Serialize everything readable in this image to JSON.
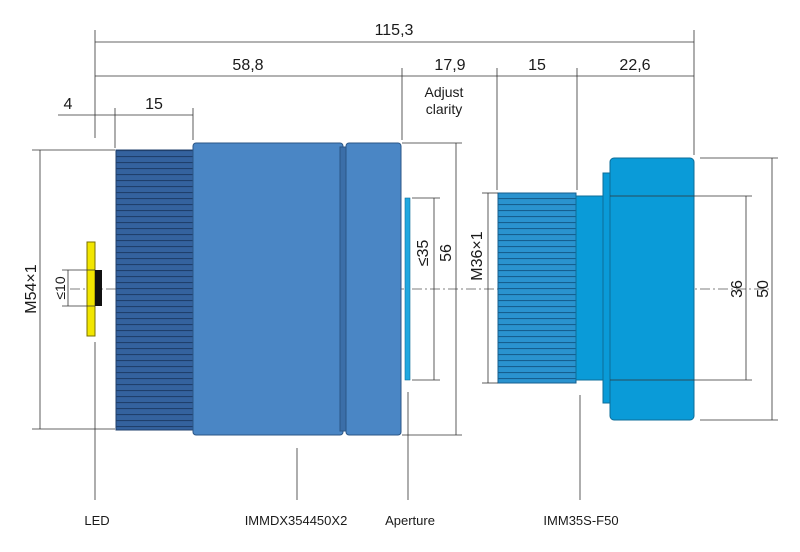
{
  "dimensions": {
    "overall_length": "115,3",
    "front_module_length": "58,8",
    "clarity_gap": "17,9",
    "thread_length_right": "15",
    "rear_body_length": "22,6",
    "led_offset": "4",
    "thread_length_left": "15",
    "left_thread": "M54×1",
    "led_field": "≤10",
    "aperture_clear": "≤35",
    "front_diameter": "56",
    "right_thread": "M36×1",
    "inner_diameter": "36",
    "outer_diameter": "50"
  },
  "notes": {
    "adjust_line1": "Adjust",
    "adjust_line2": "clarity"
  },
  "callouts": {
    "led": "LED",
    "front_lens": "IMMDX354450X2",
    "aperture": "Aperture",
    "rear_lens": "IMM35S-F50"
  },
  "colors": {
    "front_body": "#4a86c5",
    "front_thread": "#2f5f9a",
    "rear_body": "#0a9bd8",
    "rear_thread": "#1d7fb8",
    "led": "#f2e600",
    "aperture": "#1fa8e0"
  }
}
